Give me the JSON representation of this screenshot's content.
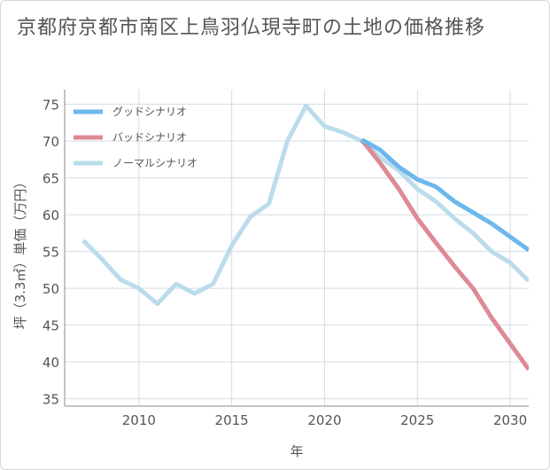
{
  "title": "京都府京都市南区上鳥羽仏現寺町の土地の価格推移",
  "chart_data": {
    "type": "line",
    "xlabel": "年",
    "ylabel": "坪（3.3㎡）単価（万円）",
    "xlim": [
      2006,
      2031
    ],
    "ylim": [
      34,
      77
    ],
    "xticks": [
      2010,
      2015,
      2020,
      2025,
      2030
    ],
    "yticks": [
      35,
      40,
      45,
      50,
      55,
      60,
      65,
      70,
      75
    ],
    "legend_position": "top-left",
    "grid": true,
    "series": [
      {
        "name": "グッドシナリオ",
        "color": "#6cb8ee",
        "x": [
          2022,
          2023,
          2024,
          2025,
          2026,
          2027,
          2028,
          2029,
          2030,
          2031
        ],
        "values": [
          70.2,
          68.8,
          66.5,
          64.8,
          63.8,
          61.8,
          60.3,
          58.8,
          57.0,
          55.2
        ]
      },
      {
        "name": "バッドシナリオ",
        "color": "#dd8a95",
        "x": [
          2022,
          2023,
          2024,
          2025,
          2026,
          2027,
          2028,
          2029,
          2030,
          2031
        ],
        "values": [
          70.2,
          67.0,
          63.5,
          59.5,
          56.2,
          53.0,
          50.0,
          46.0,
          42.5,
          39.0
        ]
      },
      {
        "name": "ノーマルシナリオ",
        "color": "#bcdcec",
        "x": [
          2007,
          2008,
          2009,
          2010,
          2011,
          2012,
          2013,
          2014,
          2015,
          2016,
          2017,
          2018,
          2019,
          2020,
          2021,
          2022,
          2023,
          2024,
          2025,
          2026,
          2027,
          2028,
          2029,
          2030,
          2031
        ],
        "values": [
          56.5,
          54.0,
          51.2,
          50.0,
          47.9,
          50.6,
          49.3,
          50.6,
          55.8,
          59.7,
          61.5,
          70.0,
          74.8,
          72.0,
          71.2,
          70.0,
          67.8,
          66.0,
          63.5,
          61.8,
          59.5,
          57.5,
          55.0,
          53.5,
          51.0
        ]
      }
    ]
  }
}
